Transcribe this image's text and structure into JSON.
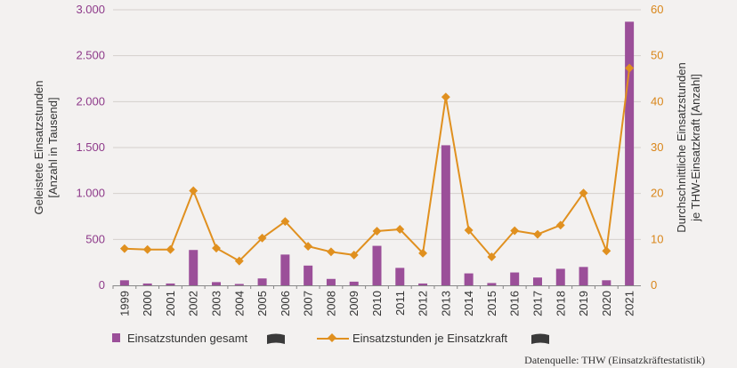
{
  "chart_data": {
    "type": "bar+line",
    "categories": [
      "1999",
      "2000",
      "2001",
      "2002",
      "2003",
      "2004",
      "2005",
      "2006",
      "2007",
      "2008",
      "2009",
      "2010",
      "2011",
      "2012",
      "2013",
      "2014",
      "2015",
      "2016",
      "2017",
      "2018",
      "2019",
      "2020",
      "2021"
    ],
    "series": [
      {
        "name": "Einsatzstunden gesamt",
        "type": "bar",
        "axis": "left",
        "color": "#9b4f99",
        "values": [
          55,
          20,
          20,
          385,
          35,
          15,
          75,
          335,
          215,
          70,
          40,
          430,
          190,
          20,
          1525,
          130,
          25,
          140,
          85,
          180,
          200,
          55,
          2870
        ]
      },
      {
        "name": "Einsatzstunden je Einsatzkraft",
        "type": "line",
        "axis": "right",
        "color": "#e0901f",
        "values": [
          8,
          7.8,
          7.8,
          20.6,
          8.1,
          5.3,
          10.3,
          13.9,
          8.5,
          7.3,
          6.6,
          11.8,
          12.2,
          7.0,
          41.0,
          12.0,
          6.2,
          11.9,
          11.1,
          13.1,
          20.1,
          7.5,
          47.3
        ]
      }
    ],
    "yLeft": {
      "label_line1": "Geleistete Einsatzstunden",
      "label_line2": "[Anzahl in Tausend]",
      "range": [
        0,
        3000
      ],
      "ticks": [
        0,
        500,
        1000,
        1500,
        2000,
        2500,
        3000
      ],
      "tick_labels": [
        "0",
        "500",
        "1.000",
        "1.500",
        "2.000",
        "2.500",
        "3.000"
      ]
    },
    "yRight": {
      "label_line1": "Durchschnittliche Einsatzstunden",
      "label_line2": "je THW-Einsatzkraft [Anzahl]",
      "range": [
        0,
        60
      ],
      "ticks": [
        0,
        10,
        20,
        30,
        40,
        50,
        60
      ],
      "tick_labels": [
        "0",
        "10",
        "20",
        "30",
        "40",
        "50",
        "60"
      ]
    },
    "legend": {
      "bar_label": "Einsatzstunden gesamt",
      "line_label": "Einsatzstunden je Einsatzkraft",
      "position": "bottom"
    },
    "source": "Datenquelle: THW (Einsatzkräftestatistik)"
  }
}
